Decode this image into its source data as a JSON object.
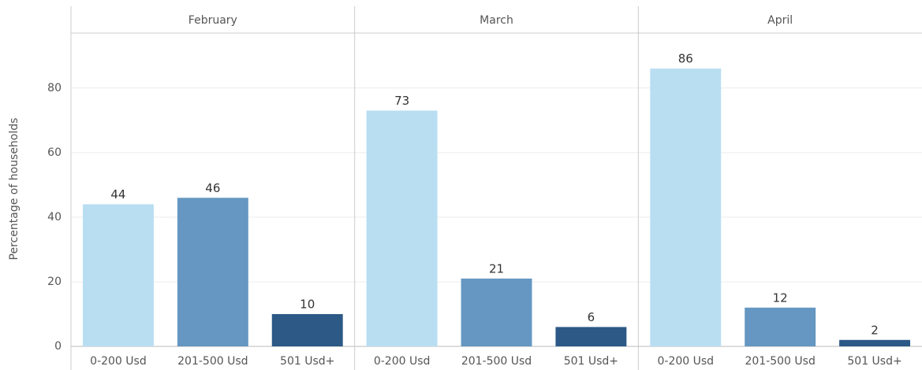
{
  "chart_data": {
    "type": "bar",
    "y_label": "Percentage of households",
    "ylim": [
      0,
      97
    ],
    "yticks": [
      0,
      20,
      40,
      60,
      80
    ],
    "grid": true,
    "categories": [
      "0-200 Usd",
      "201-500 Usd",
      "501 Usd+"
    ],
    "colors": [
      "#b9def2",
      "#6597c2",
      "#2c5986"
    ],
    "panels": [
      {
        "title": "February",
        "values": [
          44,
          46,
          10
        ]
      },
      {
        "title": "March",
        "values": [
          73,
          21,
          6
        ]
      },
      {
        "title": "April",
        "values": [
          86,
          12,
          2
        ]
      }
    ]
  }
}
